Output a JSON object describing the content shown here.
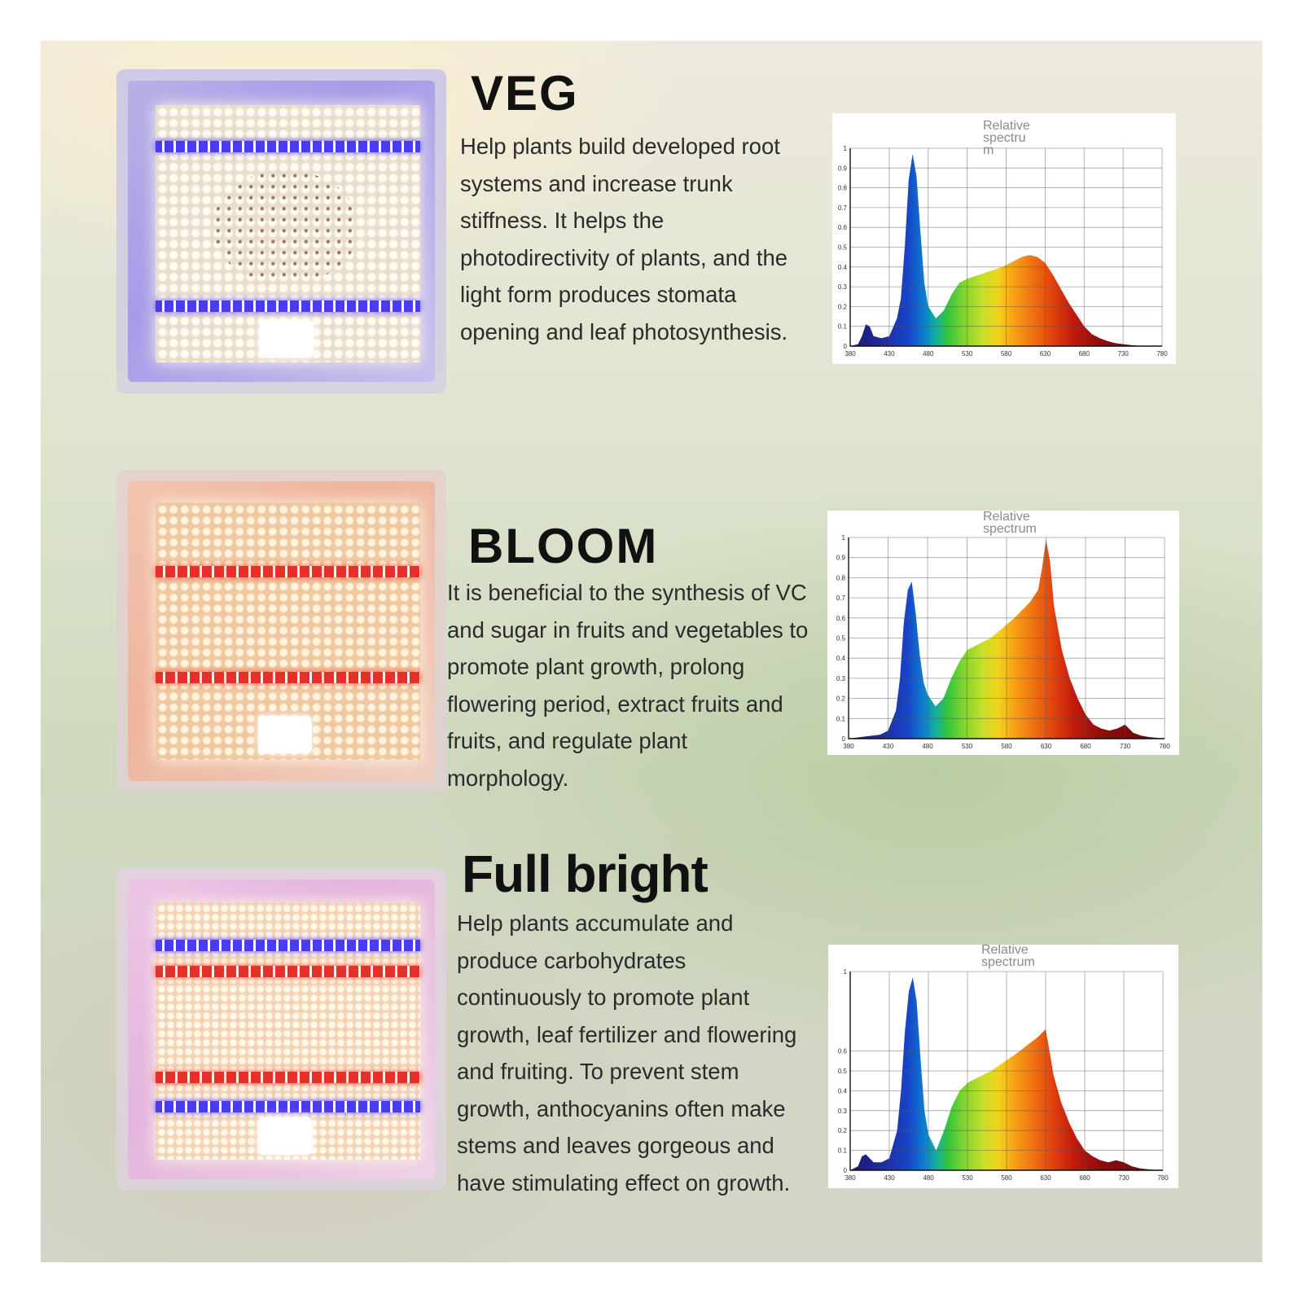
{
  "sections": [
    {
      "heading": "VEG",
      "lines": [
        "Help plants build developed root",
        "systems and increase trunk",
        "stiffness. It helps the",
        "photodirectivity of plants, and the",
        "light form produces stomata",
        "opening and leaf photosynthesis."
      ]
    },
    {
      "heading": "BLOOM",
      "lines": [
        "It is beneficial to the synthesis of VC",
        "and sugar in fruits and vegetables to",
        "promote plant growth, prolong",
        "flowering period, extract fruits and",
        "fruits, and regulate plant",
        "morphology."
      ]
    },
    {
      "heading": "Full bright",
      "lines": [
        "Help plants accumulate and",
        "produce carbohydrates",
        "continuously to promote plant",
        "growth, leaf fertilizer and flowering",
        "and fruiting. To prevent stem",
        "growth, anthocyanins often make",
        "stems and leaves gorgeous and",
        "have stimulating effect on growth."
      ]
    }
  ],
  "chart_data": [
    {
      "type": "area",
      "title_lines": [
        "Relative",
        "spectru",
        "m"
      ],
      "x_ticks": [
        "380",
        "430",
        "480",
        "530",
        "580",
        "630",
        "680",
        "730",
        "780"
      ],
      "y_ticks": [
        "0",
        "0.1",
        "0.2",
        "0.3",
        "0.4",
        "0.5",
        "0.6",
        "0.7",
        "0.8",
        "0.9",
        "1"
      ],
      "xlim": [
        380,
        780
      ],
      "ylim": [
        0,
        1
      ],
      "x": [
        380,
        390,
        395,
        400,
        405,
        410,
        420,
        430,
        440,
        445,
        450,
        455,
        460,
        465,
        470,
        475,
        480,
        490,
        500,
        510,
        520,
        530,
        545,
        560,
        575,
        590,
        600,
        610,
        620,
        630,
        640,
        650,
        660,
        670,
        680,
        690,
        700,
        710,
        720,
        730,
        740,
        750,
        760,
        770,
        780
      ],
      "y": [
        0,
        0.01,
        0.05,
        0.11,
        0.1,
        0.05,
        0.04,
        0.05,
        0.14,
        0.24,
        0.5,
        0.84,
        0.97,
        0.86,
        0.58,
        0.32,
        0.2,
        0.14,
        0.18,
        0.26,
        0.32,
        0.34,
        0.36,
        0.38,
        0.4,
        0.43,
        0.45,
        0.46,
        0.45,
        0.42,
        0.36,
        0.29,
        0.22,
        0.16,
        0.1,
        0.06,
        0.04,
        0.025,
        0.015,
        0.01,
        0.005,
        0.002,
        0.001,
        0,
        0
      ]
    },
    {
      "type": "area",
      "title_lines": [
        "Relative",
        "spectrum"
      ],
      "x_ticks": [
        "380",
        "430",
        "480",
        "530",
        "580",
        "630",
        "680",
        "730",
        "780"
      ],
      "y_ticks": [
        "0",
        "0.1",
        "0.2",
        "0.3",
        "0.4",
        "0.5",
        "0.6",
        "0.7",
        "0.8",
        "0.9",
        "1"
      ],
      "xlim": [
        380,
        780
      ],
      "ylim": [
        0,
        1
      ],
      "x": [
        380,
        400,
        420,
        430,
        440,
        445,
        450,
        455,
        460,
        465,
        470,
        475,
        480,
        490,
        500,
        510,
        520,
        530,
        545,
        560,
        575,
        590,
        600,
        610,
        620,
        625,
        630,
        635,
        640,
        650,
        660,
        670,
        680,
        690,
        700,
        710,
        720,
        725,
        730,
        735,
        740,
        750,
        760,
        770,
        780
      ],
      "y": [
        0,
        0.01,
        0.02,
        0.04,
        0.14,
        0.3,
        0.58,
        0.74,
        0.78,
        0.62,
        0.42,
        0.28,
        0.22,
        0.16,
        0.2,
        0.3,
        0.38,
        0.44,
        0.47,
        0.5,
        0.55,
        0.6,
        0.64,
        0.68,
        0.74,
        0.85,
        0.99,
        0.88,
        0.66,
        0.44,
        0.3,
        0.2,
        0.12,
        0.07,
        0.05,
        0.04,
        0.05,
        0.06,
        0.07,
        0.05,
        0.03,
        0.015,
        0.008,
        0.004,
        0
      ]
    },
    {
      "type": "area",
      "title_lines": [
        "Relative",
        "spectrum"
      ],
      "x_ticks": [
        "380",
        "430",
        "480",
        "530",
        "580",
        "630",
        "680",
        "730",
        "780"
      ],
      "y_ticks": [
        "0",
        "0.1",
        "0.2",
        "0.3",
        "0.4",
        "0.5",
        "0.6",
        "1"
      ],
      "xlim": [
        380,
        780
      ],
      "ylim": [
        0,
        1
      ],
      "x": [
        380,
        390,
        395,
        400,
        405,
        410,
        420,
        430,
        440,
        445,
        450,
        455,
        460,
        465,
        470,
        475,
        480,
        490,
        500,
        510,
        520,
        530,
        545,
        560,
        575,
        590,
        600,
        610,
        620,
        625,
        630,
        635,
        640,
        650,
        660,
        670,
        680,
        690,
        700,
        710,
        720,
        730,
        740,
        750,
        760,
        770,
        780
      ],
      "y": [
        0,
        0.02,
        0.07,
        0.08,
        0.06,
        0.04,
        0.04,
        0.06,
        0.2,
        0.4,
        0.7,
        0.9,
        0.97,
        0.85,
        0.56,
        0.3,
        0.18,
        0.1,
        0.2,
        0.32,
        0.4,
        0.44,
        0.47,
        0.5,
        0.54,
        0.58,
        0.61,
        0.64,
        0.67,
        0.69,
        0.71,
        0.6,
        0.48,
        0.34,
        0.24,
        0.16,
        0.1,
        0.07,
        0.05,
        0.04,
        0.05,
        0.04,
        0.02,
        0.01,
        0.005,
        0.002,
        0
      ]
    }
  ]
}
